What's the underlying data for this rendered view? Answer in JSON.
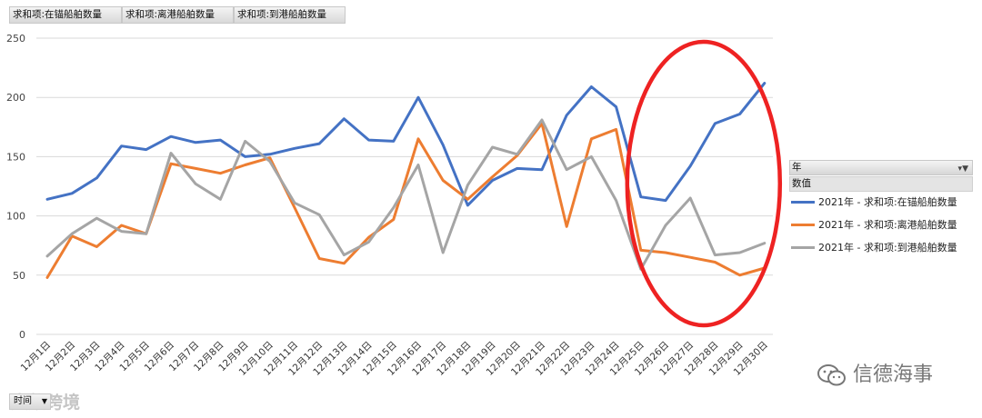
{
  "pivot_fields": [
    {
      "label": "求和项:在锚船舶数量"
    },
    {
      "label": "求和项:离港船舶数量"
    },
    {
      "label": "求和项:到港船舶数量"
    }
  ],
  "legend": {
    "field_label": "年",
    "values_label": "数值",
    "filter_icon": "filter-dropdown-icon"
  },
  "axis_field": {
    "label": "时间",
    "icon": "dropdown-arrow-icon"
  },
  "watermarks": {
    "left_text": "大数跨境",
    "logo_text": "信德海事",
    "logo_icon": "wechat-icon"
  },
  "chart_data": {
    "type": "line",
    "categories": [
      "12月1日",
      "12月2日",
      "12月3日",
      "12月4日",
      "12月5日",
      "12月6日",
      "12月7日",
      "12月8日",
      "12月9日",
      "12月10日",
      "12月11日",
      "12月12日",
      "12月13日",
      "12月14日",
      "12月15日",
      "12月16日",
      "12月17日",
      "12月18日",
      "12月19日",
      "12月20日",
      "12月21日",
      "12月22日",
      "12月23日",
      "12月24日",
      "12月25日",
      "12月26日",
      "12月27日",
      "12月28日",
      "12月29日",
      "12月30日"
    ],
    "ylim": [
      0,
      250
    ],
    "yticks": [
      0,
      50,
      100,
      150,
      200,
      250
    ],
    "grid": true,
    "legend_position": "right",
    "series": [
      {
        "name": "2021年 - 求和项:在锚船舶数量",
        "color": "#4472c4",
        "values": [
          114,
          119,
          132,
          159,
          156,
          167,
          162,
          164,
          150,
          152,
          157,
          161,
          182,
          164,
          163,
          200,
          160,
          109,
          130,
          140,
          139,
          185,
          209,
          192,
          116,
          113,
          142,
          178,
          186,
          212
        ]
      },
      {
        "name": "2021年 - 求和项:离港船舶数量",
        "color": "#ed7d31",
        "values": [
          48,
          83,
          74,
          92,
          85,
          144,
          140,
          136,
          143,
          149,
          107,
          64,
          60,
          82,
          97,
          165,
          130,
          114,
          133,
          151,
          178,
          91,
          165,
          173,
          71,
          69,
          65,
          61,
          50,
          56
        ]
      },
      {
        "name": "2021年 - 求和项:到港船舶数量",
        "color": "#a5a5a5",
        "values": [
          66,
          85,
          98,
          87,
          85,
          153,
          127,
          114,
          163,
          146,
          111,
          101,
          67,
          78,
          107,
          143,
          69,
          126,
          158,
          152,
          181,
          139,
          150,
          113,
          55,
          92,
          115,
          67,
          69,
          77
        ]
      }
    ],
    "annotation": {
      "shape": "ellipse",
      "color": "#ee2222",
      "around_categories": [
        "12月25日",
        "12月30日"
      ]
    }
  }
}
